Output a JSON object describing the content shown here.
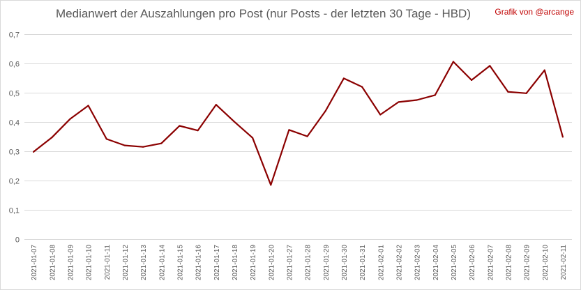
{
  "chart_data": {
    "type": "line",
    "title": "Medianwert der Auszahlungen pro Post (nur Posts - der letzten 30 Tage - HBD)",
    "credit": "Grafik von @arcange",
    "xlabel": "",
    "ylabel": "",
    "ylim": [
      0,
      0.7
    ],
    "y_ticks": [
      "0",
      "0,1",
      "0,2",
      "0,3",
      "0,4",
      "0,5",
      "0,6",
      "0,7"
    ],
    "grid": true,
    "x": [
      "2021-01-07",
      "2021-01-08",
      "2021-01-09",
      "2021-01-10",
      "2021-01-11",
      "2021-01-12",
      "2021-01-13",
      "2021-01-14",
      "2021-01-15",
      "2021-01-16",
      "2021-01-17",
      "2021-01-18",
      "2021-01-19",
      "2021-01-20",
      "2021-01-27",
      "2021-01-28",
      "2021-01-29",
      "2021-01-30",
      "2021-01-31",
      "2021-02-01",
      "2021-02-02",
      "2021-02-03",
      "2021-02-04",
      "2021-02-05",
      "2021-02-06",
      "2021-02-07",
      "2021-02-08",
      "2021-02-09",
      "2021-02-10",
      "2021-02-11"
    ],
    "series": [
      {
        "values": [
          0.298,
          0.347,
          0.41,
          0.456,
          0.342,
          0.32,
          0.315,
          0.327,
          0.387,
          0.371,
          0.459,
          0.401,
          0.346,
          0.185,
          0.373,
          0.351,
          0.438,
          0.549,
          0.52,
          0.425,
          0.468,
          0.475,
          0.492,
          0.606,
          0.543,
          0.592,
          0.503,
          0.498,
          0.577,
          0.349
        ],
        "color": "#8b0000"
      }
    ],
    "colors": {
      "title": "#595959",
      "credit": "#c00000",
      "axis_text": "#595959",
      "grid": "#d9d9d9",
      "line": "#8b0000"
    }
  }
}
